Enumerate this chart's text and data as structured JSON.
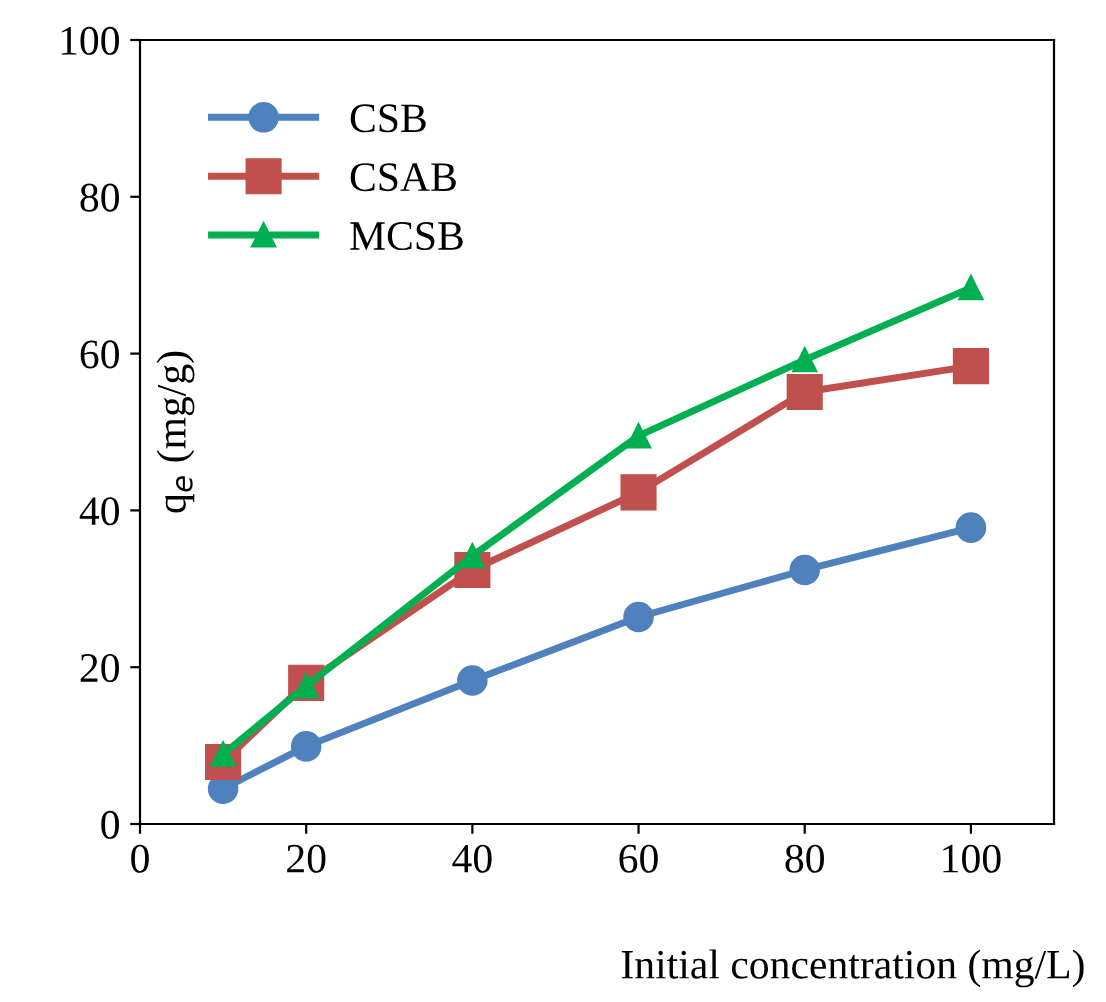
{
  "chart_data": {
    "type": "line",
    "xlabel": "Initial concentration (mg/L)",
    "ylabel": "q$_{e}$ (mg/g)",
    "x": [
      10,
      20,
      40,
      60,
      80,
      100
    ],
    "series": [
      {
        "name": "CSB",
        "color": "#4f81bd",
        "marker": "circle",
        "values": [
          4.5,
          9.9,
          18.3,
          26.4,
          32.4,
          37.8
        ]
      },
      {
        "name": "CSAB",
        "color": "#c0504d",
        "marker": "square",
        "values": [
          7.9,
          18,
          32.4,
          42.3,
          55.1,
          58.4
        ]
      },
      {
        "name": "MCSB",
        "color": "#00b050",
        "marker": "triangle",
        "values": [
          8.9,
          17.6,
          34.2,
          49.5,
          59.2,
          68.4
        ]
      }
    ],
    "xlim": [
      0,
      110
    ],
    "xticks": [
      0,
      20,
      40,
      60,
      80,
      100
    ],
    "ylim": [
      0,
      100
    ],
    "yticks": [
      0,
      20,
      40,
      60,
      80,
      100
    ],
    "grid": false,
    "legend": "top left",
    "line_style": "solid"
  }
}
